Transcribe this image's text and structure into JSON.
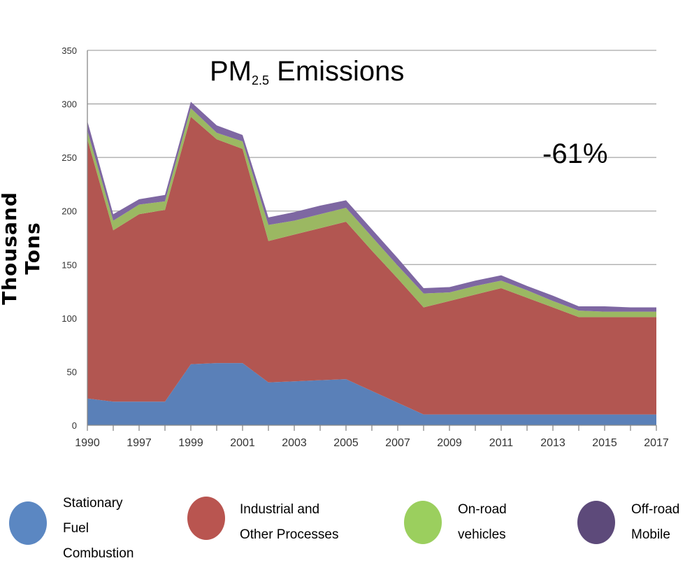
{
  "chart_data": {
    "type": "area",
    "stacked": true,
    "title": {
      "main": "PM",
      "subscript": "2.5",
      "rest": "Emissions"
    },
    "annotation": "-61%",
    "xlabel": "",
    "ylabel": "Thousand  Tons",
    "ylim": [
      0,
      350
    ],
    "yticks": [
      0,
      50,
      100,
      150,
      200,
      250,
      300,
      350
    ],
    "grid": true,
    "legend_position": "bottom",
    "x": [
      1990,
      1996,
      1997,
      1998,
      1999,
      2000,
      2001,
      2002,
      2003,
      2004,
      2005,
      2006,
      2007,
      2008,
      2009,
      2010,
      2011,
      2012,
      2013,
      2014,
      2015,
      2016,
      2017
    ],
    "xtick_labels": [
      "1990",
      "1997",
      "1999",
      "2001",
      "2003",
      "2005",
      "2007",
      "2009",
      "2011",
      "2013",
      "2015",
      "2017"
    ],
    "series": [
      {
        "name": "Stationary Fuel Combustion",
        "lines": [
          "Stationary",
          "Fuel",
          "Combustion"
        ],
        "color": "#5a80b8",
        "legend_color": "#5b87c2",
        "values": [
          25,
          22,
          22,
          22,
          57,
          58,
          58,
          40,
          41,
          42,
          43,
          32,
          21,
          10,
          10,
          10,
          10,
          10,
          10,
          10,
          10,
          10,
          10
        ]
      },
      {
        "name": "Industrial and Other Processes",
        "lines": [
          "Industrial and",
          "Other Processes"
        ],
        "color": "#b25651",
        "legend_color": "#b95550",
        "values": [
          242,
          160,
          175,
          179,
          231,
          209,
          200,
          132,
          137,
          142,
          147,
          131,
          116,
          100,
          106,
          112,
          118,
          109,
          100,
          91,
          91,
          91,
          91
        ]
      },
      {
        "name": "On-road vehicles",
        "lines": [
          "On-road",
          "vehicles"
        ],
        "color": "#9bb862",
        "legend_color": "#9bcf5e",
        "values": [
          8,
          9,
          9,
          8,
          8,
          6,
          7,
          15,
          13,
          13,
          13,
          13,
          12,
          13,
          8,
          8,
          7,
          7,
          6,
          6,
          5,
          5,
          5
        ]
      },
      {
        "name": "Off-road Mobile",
        "lines": [
          "Off-road",
          "Mobile"
        ],
        "color": "#7e67a2",
        "legend_color": "#5d4a7a",
        "values": [
          9,
          6,
          5,
          6,
          6,
          7,
          6,
          7,
          8,
          8,
          7,
          7,
          7,
          5,
          5,
          5,
          5,
          4,
          5,
          4,
          5,
          4,
          4
        ]
      }
    ]
  }
}
